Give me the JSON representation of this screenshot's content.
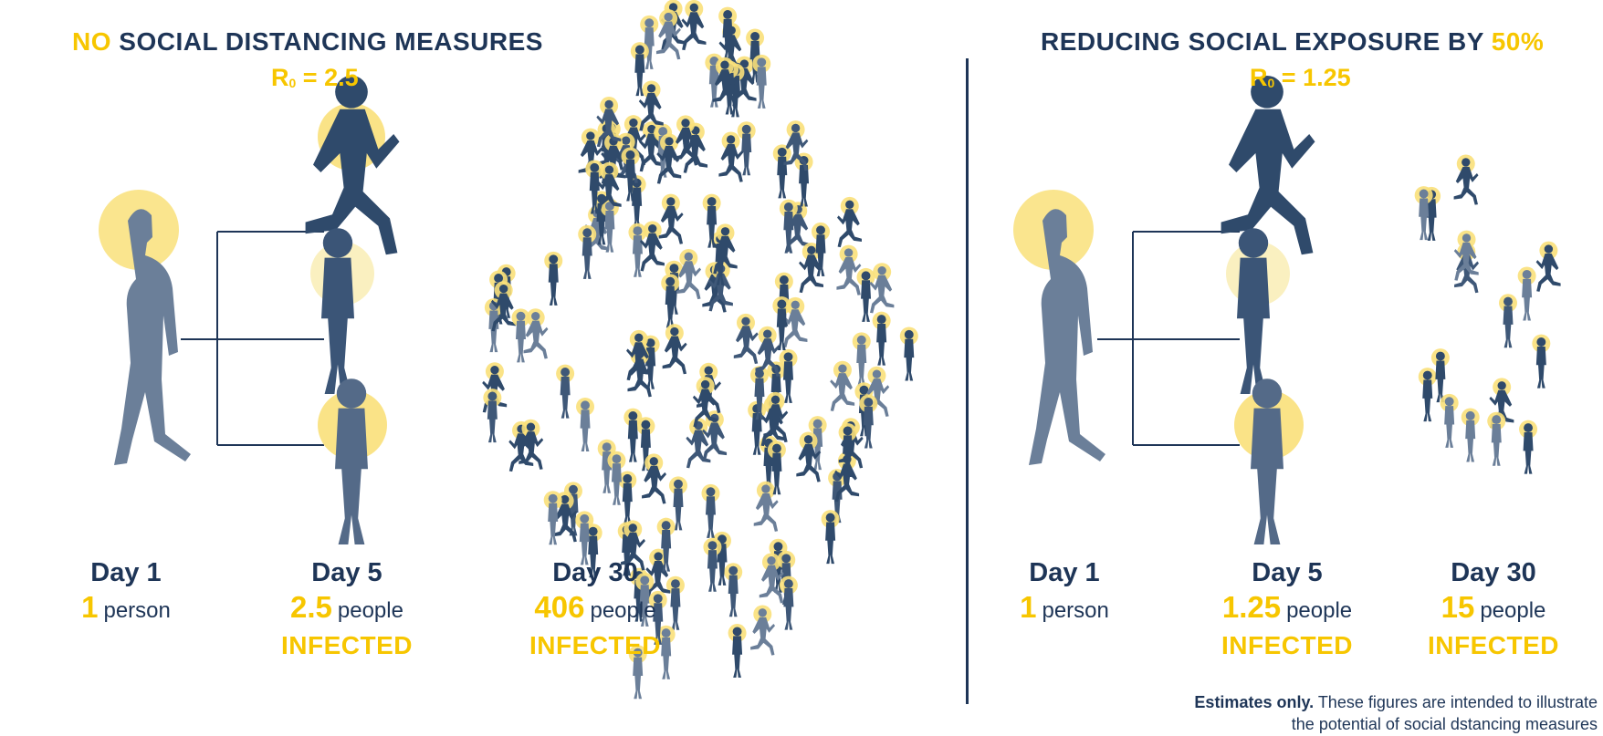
{
  "left": {
    "title_highlight": "NO",
    "title_rest": " SOCIAL DISTANCING MEASURES",
    "r0_symbol": "R",
    "r0_sub": "0",
    "r0_value": " = 2.5",
    "stages": [
      {
        "day": "Day 1",
        "num": "1",
        "unit": "person",
        "status": ""
      },
      {
        "day": "Day 5",
        "num": "2.5",
        "unit": "people",
        "status": "INFECTED"
      },
      {
        "day": "Day 30",
        "num": "406",
        "unit": "people",
        "status": "INFECTED"
      }
    ]
  },
  "right": {
    "title_rest": "REDUCING SOCIAL EXPOSURE BY ",
    "title_highlight": "50%",
    "r0_symbol": "R",
    "r0_sub": "0",
    "r0_value": " = 1.25",
    "stages": [
      {
        "day": "Day 1",
        "num": "1",
        "unit": "person",
        "status": ""
      },
      {
        "day": "Day 5",
        "num": "1.25",
        "unit": "people",
        "status": "INFECTED"
      },
      {
        "day": "Day 30",
        "num": "15",
        "unit": "people",
        "status": "INFECTED"
      }
    ]
  },
  "note": {
    "bold": "Estimates only.",
    "line1": " These figures are intended to illustrate",
    "line2": "the potential of social dstancing measures"
  },
  "colors": {
    "navy": "#1e3557",
    "yellow": "#f7c600",
    "slate": "#6b7f99",
    "halo": "#f9e07a"
  }
}
